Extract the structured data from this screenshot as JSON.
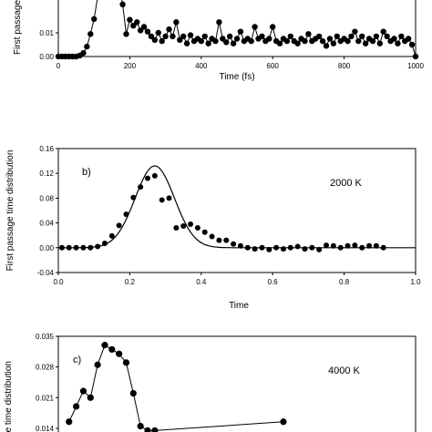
{
  "chart_data": [
    {
      "type": "line",
      "panel_label": "",
      "title": "",
      "xlabel": "Time (fs)",
      "ylabel": "First passage",
      "temperature_label": "",
      "xlim": [
        0,
        1000
      ],
      "ylim": [
        0.0,
        0.04
      ],
      "xticks": [
        0,
        200,
        400,
        600,
        800,
        1000
      ],
      "yticks": [
        0.0,
        0.01
      ],
      "ytick_labels": [
        "0.00",
        "0.01"
      ],
      "grid": false,
      "series": [
        {
          "marker": "circle",
          "connected": true,
          "x": [
            0,
            10,
            20,
            30,
            40,
            50,
            60,
            70,
            80,
            90,
            100,
            110,
            120,
            130,
            140,
            150,
            160,
            170,
            180,
            190,
            200,
            210,
            220,
            230,
            240,
            250,
            260,
            270,
            280,
            290,
            300,
            310,
            320,
            330,
            340,
            350,
            360,
            370,
            380,
            390,
            400,
            410,
            420,
            430,
            440,
            450,
            460,
            470,
            480,
            490,
            500,
            510,
            520,
            530,
            540,
            550,
            560,
            570,
            580,
            590,
            600,
            610,
            620,
            630,
            640,
            650,
            660,
            670,
            680,
            690,
            700,
            710,
            720,
            730,
            740,
            750,
            760,
            770,
            780,
            790,
            800,
            810,
            820,
            830,
            840,
            850,
            860,
            870,
            880,
            890,
            900,
            910,
            920,
            930,
            940,
            950,
            960,
            970,
            980,
            990,
            1000
          ],
          "y": [
            0.0,
            0.0,
            0.0,
            0.0,
            0.0,
            0.0,
            0.0004,
            0.0015,
            0.0042,
            0.0095,
            0.0158,
            0.025,
            0.032,
            0.036,
            0.038,
            0.036,
            0.034,
            0.03,
            0.022,
            0.0095,
            0.0155,
            0.013,
            0.0145,
            0.011,
            0.0125,
            0.0105,
            0.0085,
            0.007,
            0.01,
            0.0065,
            0.0085,
            0.0115,
            0.0085,
            0.0145,
            0.007,
            0.0085,
            0.0055,
            0.009,
            0.0065,
            0.0075,
            0.0065,
            0.0085,
            0.0055,
            0.0075,
            0.0065,
            0.0145,
            0.0075,
            0.006,
            0.0085,
            0.0055,
            0.0075,
            0.0105,
            0.0065,
            0.0075,
            0.0065,
            0.0125,
            0.0075,
            0.0085,
            0.0065,
            0.0075,
            0.0125,
            0.0065,
            0.0055,
            0.0075,
            0.0065,
            0.0085,
            0.0065,
            0.0055,
            0.0075,
            0.0065,
            0.0095,
            0.0065,
            0.0075,
            0.0085,
            0.0065,
            0.0045,
            0.0075,
            0.0055,
            0.0085,
            0.0065,
            0.0075,
            0.0065,
            0.0085,
            0.0105,
            0.0065,
            0.0085,
            0.0055,
            0.0075,
            0.0065,
            0.0085,
            0.0055,
            0.0105,
            0.0085,
            0.0065,
            0.0075,
            0.0055,
            0.0085,
            0.0065,
            0.0075,
            0.005,
            0.0
          ]
        }
      ]
    },
    {
      "type": "scatter",
      "panel_label": "b)",
      "title": "",
      "xlabel": "Time",
      "ylabel": "First passage time distribution",
      "temperature_label": "2000 K",
      "xlim": [
        0.0,
        1.0
      ],
      "ylim": [
        -0.04,
        0.16
      ],
      "xticks": [
        0.0,
        0.2,
        0.4,
        0.6,
        0.8,
        1.0
      ],
      "xtick_labels": [
        "0.0",
        "0.2",
        "0.4",
        "0.6",
        "0.8",
        "1.0"
      ],
      "yticks": [
        -0.04,
        0.0,
        0.04,
        0.08,
        0.12,
        0.16
      ],
      "ytick_labels": [
        "-0.04",
        "0.00",
        "0.04",
        "0.08",
        "0.12",
        "0.16"
      ],
      "grid": false,
      "fit_curve": {
        "kind": "gaussian",
        "amplitude": 0.132,
        "center": 0.27,
        "sigma": 0.055,
        "baseline": 0.0,
        "x_range": [
          0.0,
          1.0
        ]
      },
      "series": [
        {
          "marker": "circle",
          "connected": false,
          "x": [
            0.01,
            0.03,
            0.05,
            0.07,
            0.09,
            0.11,
            0.13,
            0.15,
            0.17,
            0.19,
            0.21,
            0.23,
            0.25,
            0.27,
            0.29,
            0.31,
            0.33,
            0.35,
            0.37,
            0.39,
            0.41,
            0.43,
            0.45,
            0.47,
            0.49,
            0.51,
            0.53,
            0.55,
            0.57,
            0.59,
            0.61,
            0.63,
            0.65,
            0.67,
            0.69,
            0.71,
            0.73,
            0.75,
            0.77,
            0.79,
            0.81,
            0.83,
            0.85,
            0.87,
            0.89,
            0.91
          ],
          "y": [
            0.0,
            0.0,
            0.0,
            0.0,
            0.0,
            0.002,
            0.007,
            0.019,
            0.036,
            0.054,
            0.081,
            0.098,
            0.112,
            0.116,
            0.077,
            0.08,
            0.032,
            0.035,
            0.038,
            0.032,
            0.025,
            0.018,
            0.012,
            0.012,
            0.006,
            0.003,
            0.0,
            -0.002,
            0.0,
            -0.003,
            0.0,
            -0.002,
            0.0,
            0.002,
            -0.002,
            0.0,
            -0.003,
            0.004,
            0.003,
            0.0,
            0.003,
            0.004,
            0.0,
            0.003,
            0.003,
            0.0
          ]
        }
      ]
    },
    {
      "type": "line",
      "panel_label": "c)",
      "title": "",
      "xlabel": "",
      "ylabel": "ge time distribution",
      "temperature_label": "4000 K",
      "xlim": [
        0.0,
        1.0
      ],
      "ylim": [
        0.0,
        0.035
      ],
      "yticks": [
        0.014,
        0.021,
        0.028,
        0.035
      ],
      "ytick_labels": [
        "0.014",
        "0.021",
        "0.028",
        "0.035"
      ],
      "grid": false,
      "series": [
        {
          "marker": "circle",
          "connected": true,
          "x": [
            0.03,
            0.05,
            0.07,
            0.09,
            0.11,
            0.13,
            0.15,
            0.17,
            0.19,
            0.21,
            0.23,
            0.25,
            0.27,
            0.63
          ],
          "y": [
            0.0155,
            0.019,
            0.0225,
            0.021,
            0.0285,
            0.033,
            0.032,
            0.031,
            0.029,
            0.022,
            0.0145,
            0.0135,
            0.0135,
            0.0155
          ]
        }
      ]
    }
  ]
}
